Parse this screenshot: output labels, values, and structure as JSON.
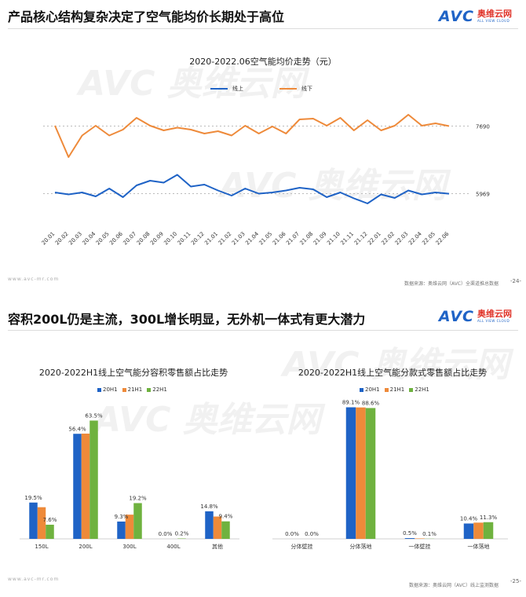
{
  "slide1": {
    "title": "产品核心结构复杂决定了空气能均价长期处于高位",
    "logo": {
      "avc": "AVC",
      "cn": "奥维云网",
      "en": "ALL VIEW CLOUD"
    },
    "web": "www.avc-mr.com",
    "source": "数据来源：奥维云网（AVC）全渠道推总数据",
    "page": "-24-"
  },
  "slide2": {
    "title": "容积200L仍是主流，300L增长明显，无外机一体式有更大潜力",
    "logo": {
      "avc": "AVC",
      "cn": "奥维云网",
      "en": "ALL VIEW CLOUD"
    },
    "web": "www.avc-mr.com",
    "source": "数据来源：奥维云网（AVC）线上监测数据",
    "page": "-25-"
  },
  "colors": {
    "online": "#1f63c6",
    "offline": "#ee8a3a",
    "h20": "#1f63c6",
    "h21": "#ee8a3a",
    "h22": "#6fb23f"
  },
  "chart_data": [
    {
      "type": "line",
      "title": "2020-2022.06空气能均价走势（元）",
      "categories": [
        "20.01",
        "20.02",
        "20.03",
        "20.04",
        "20.05",
        "20.06",
        "20.07",
        "20.08",
        "20.09",
        "20.10",
        "20.11",
        "20.12",
        "21.01",
        "21.02",
        "21.03",
        "21.04",
        "21.05",
        "21.06",
        "21.07",
        "21.08",
        "21.09",
        "21.10",
        "21.11",
        "21.12",
        "22.01",
        "22.02",
        "22.03",
        "22.04",
        "22.05",
        "22.06"
      ],
      "series": [
        {
          "name": "线上",
          "values": [
            6000,
            5950,
            6000,
            5900,
            6100,
            5880,
            6180,
            6300,
            6250,
            6450,
            6150,
            6200,
            6050,
            5920,
            6100,
            5970,
            6000,
            6050,
            6120,
            6080,
            5880,
            6000,
            5850,
            5720,
            5950,
            5860,
            6050,
            5950,
            6000,
            5969
          ]
        },
        {
          "name": "线下",
          "values": [
            7700,
            6900,
            7450,
            7700,
            7450,
            7600,
            7900,
            7700,
            7580,
            7650,
            7600,
            7500,
            7560,
            7450,
            7700,
            7500,
            7680,
            7500,
            7860,
            7880,
            7700,
            7900,
            7580,
            7840,
            7580,
            7700,
            7980,
            7700,
            7760,
            7690
          ]
        }
      ],
      "data_labels": [
        "7690",
        "5969"
      ]
    },
    {
      "type": "bar",
      "title": "2020-2022H1线上空气能分容积零售额占比走势",
      "categories": [
        "150L",
        "200L",
        "300L",
        "400L",
        "其他"
      ],
      "series": [
        {
          "name": "20H1",
          "values": [
            19.5,
            56.4,
            9.3,
            0.0,
            14.8
          ]
        },
        {
          "name": "21H1",
          "values": [
            17.0,
            56.5,
            13.0,
            0.0,
            12.0
          ]
        },
        {
          "name": "22H1",
          "values": [
            7.6,
            63.5,
            19.2,
            0.2,
            9.4
          ]
        }
      ],
      "data_labels": [
        {
          "category": "150L",
          "series": "20H1",
          "text": "19.5%"
        },
        {
          "category": "150L",
          "series": "22H1",
          "text": "7.6%"
        },
        {
          "category": "200L",
          "series": "20H1",
          "text": "56.4%"
        },
        {
          "category": "200L",
          "series": "22H1",
          "text": "63.5%"
        },
        {
          "category": "300L",
          "series": "20H1",
          "text": "9.3%"
        },
        {
          "category": "300L",
          "series": "22H1",
          "text": "19.2%"
        },
        {
          "category": "400L",
          "series": "20H1",
          "text": "0.0%"
        },
        {
          "category": "400L",
          "series": "22H1",
          "text": "0.2%"
        },
        {
          "category": "其他",
          "series": "20H1",
          "text": "14.8%"
        },
        {
          "category": "其他",
          "series": "22H1",
          "text": "9.4%"
        }
      ],
      "ylim": [
        0,
        70
      ]
    },
    {
      "type": "bar",
      "title": "2020-2022H1线上空气能分款式零售额占比走势",
      "categories": [
        "分体壁挂",
        "分体落地",
        "一体壁挂",
        "一体落地"
      ],
      "series": [
        {
          "name": "20H1",
          "values": [
            0.0,
            89.1,
            0.5,
            10.4
          ]
        },
        {
          "name": "21H1",
          "values": [
            0.0,
            89.0,
            0.3,
            11.0
          ]
        },
        {
          "name": "22H1",
          "values": [
            0.0,
            88.6,
            0.1,
            11.3
          ]
        }
      ],
      "data_labels": [
        {
          "category": "分体壁挂",
          "series": "20H1",
          "text": "0.0%"
        },
        {
          "category": "分体壁挂",
          "series": "22H1",
          "text": "0.0%"
        },
        {
          "category": "分体落地",
          "series": "20H1",
          "text": "89.1%"
        },
        {
          "category": "分体落地",
          "series": "22H1",
          "text": "88.6%"
        },
        {
          "category": "一体壁挂",
          "series": "20H1",
          "text": "0.5%"
        },
        {
          "category": "一体壁挂",
          "series": "22H1",
          "text": "0.1%"
        },
        {
          "category": "一体落地",
          "series": "20H1",
          "text": "10.4%"
        },
        {
          "category": "一体落地",
          "series": "22H1",
          "text": "11.3%"
        }
      ],
      "ylim": [
        0,
        100
      ]
    }
  ]
}
